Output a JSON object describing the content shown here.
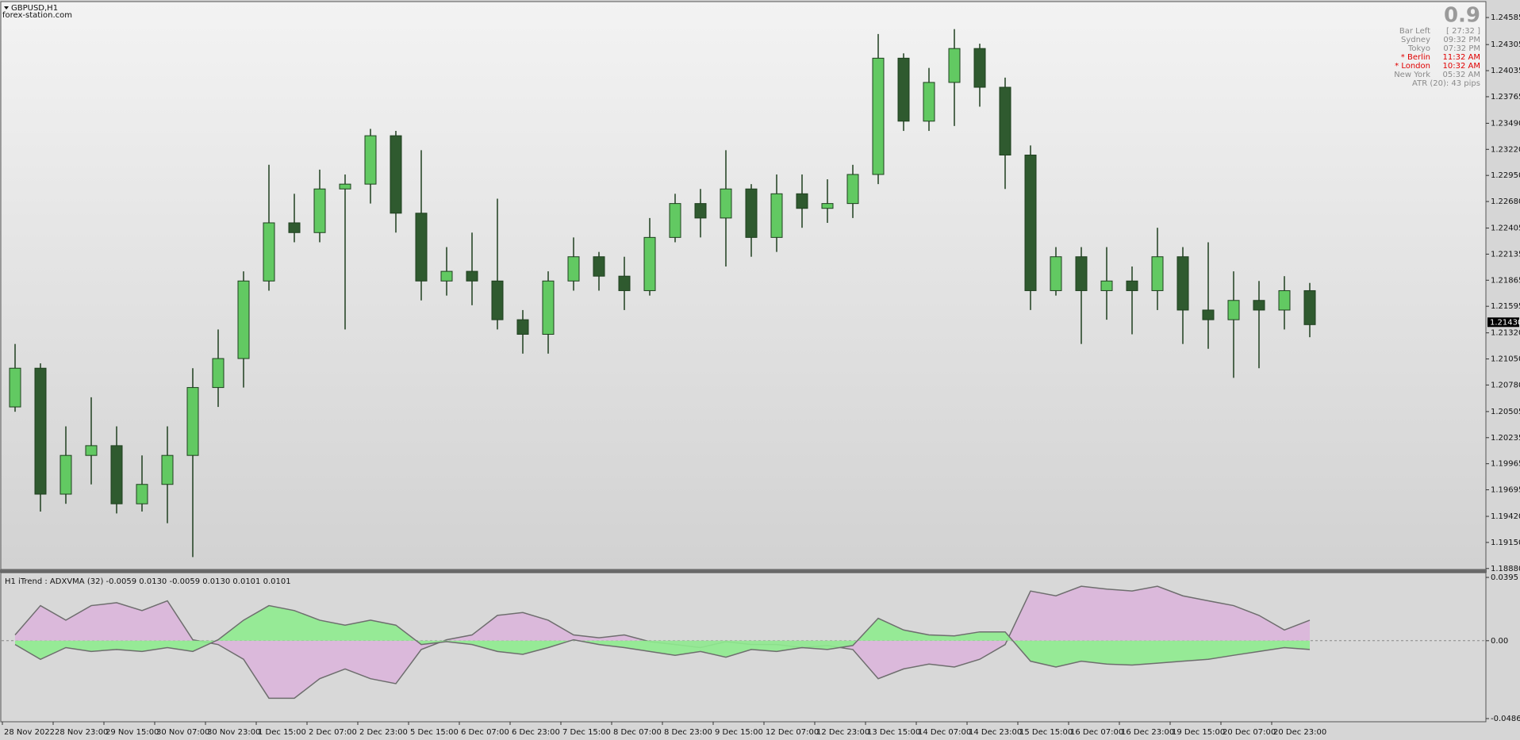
{
  "header": {
    "site": "forex-station.com"
  },
  "info_panel": {
    "spread": "0.9",
    "rows": [
      [
        "Bar Left",
        "[ 27:32 ]"
      ],
      [
        "Sydney",
        "09:32 PM"
      ],
      [
        "Tokyo",
        "07:32 PM"
      ],
      [
        "* Berlin",
        "11:32 AM"
      ],
      [
        "* London",
        "10:32 AM"
      ],
      [
        "New York",
        "05:32 AM"
      ]
    ],
    "atr": "ATR (20): 43 pips"
  },
  "chart_data": [
    {
      "type": "candlestick",
      "title": "GBPUSD,H1",
      "categories": [
        "28 Nov 2022",
        null,
        "28 Nov 23:00",
        null,
        "29 Nov 15:00",
        null,
        "30 Nov 07:00",
        null,
        "30 Nov 23:00",
        null,
        "1 Dec 15:00",
        null,
        "2 Dec 07:00",
        null,
        "2 Dec 23:00",
        null,
        "5 Dec 15:00",
        null,
        "6 Dec 07:00",
        null,
        "6 Dec 23:00",
        null,
        "7 Dec 15:00",
        null,
        "8 Dec 07:00",
        null,
        "8 Dec 23:00",
        null,
        "9 Dec 15:00",
        null,
        "12 Dec 07:00",
        null,
        "12 Dec 23:00",
        null,
        "13 Dec 15:00",
        null,
        "14 Dec 07:00",
        null,
        "14 Dec 23:00",
        null,
        "15 Dec 15:00",
        null,
        "16 Dec 07:00",
        null,
        "16 Dec 23:00",
        null,
        "19 Dec 15:00",
        null,
        "20 Dec 07:00",
        null,
        "20 Dec 23:00",
        null
      ],
      "open": [
        1.20553,
        1.20954,
        1.1965,
        1.20051,
        1.20152,
        1.1955,
        1.19751,
        1.20051,
        1.20754,
        1.21054,
        1.21857,
        1.22459,
        1.22358,
        1.2281,
        1.2286,
        1.23361,
        1.22559,
        1.21857,
        1.21957,
        1.21857,
        1.21456,
        1.21305,
        1.21857,
        1.22108,
        1.21907,
        1.21757,
        1.22308,
        1.22659,
        1.22509,
        1.2281,
        1.22308,
        1.2276,
        1.22609,
        1.22659,
        1.2296,
        1.24164,
        1.23512,
        1.23913,
        1.24264,
        1.23863,
        1.23161,
        1.21757,
        1.22108,
        1.21757,
        1.21857,
        1.21757,
        1.22108,
        1.21556,
        1.21456,
        1.21656,
        1.21556,
        1.21757
      ],
      "high": [
        1.21205,
        1.21004,
        1.20352,
        1.20653,
        1.20352,
        1.20051,
        1.20352,
        1.20954,
        1.21355,
        1.21957,
        1.2306,
        1.2276,
        1.2301,
        1.2296,
        1.23432,
        1.23411,
        1.23211,
        1.22208,
        1.22358,
        1.22709,
        1.21556,
        1.21957,
        1.22308,
        1.22158,
        1.22108,
        1.22509,
        1.2276,
        1.2281,
        1.23211,
        1.2286,
        1.2296,
        1.2296,
        1.2291,
        1.2306,
        1.24414,
        1.24214,
        1.24063,
        1.24465,
        1.24314,
        1.23963,
        1.23261,
        1.22208,
        1.22208,
        1.22208,
        1.22007,
        1.22408,
        1.22208,
        1.22258,
        1.21957,
        1.21857,
        1.21907,
        1.21837
      ],
      "low": [
        1.20503,
        1.1947,
        1.1955,
        1.19751,
        1.1945,
        1.1947,
        1.19349,
        1.18998,
        1.20553,
        1.20754,
        1.21757,
        1.22258,
        1.22258,
        1.21355,
        1.22659,
        1.22358,
        1.21656,
        1.21706,
        1.21606,
        1.21355,
        1.21105,
        1.21105,
        1.21757,
        1.21757,
        1.21556,
        1.21706,
        1.22258,
        1.22308,
        1.22007,
        1.22108,
        1.22158,
        1.22408,
        1.22459,
        1.22509,
        1.2286,
        1.23411,
        1.23411,
        1.23462,
        1.23662,
        1.2281,
        1.21556,
        1.21706,
        1.21205,
        1.21456,
        1.21305,
        1.21556,
        1.21205,
        1.21155,
        1.20854,
        1.20954,
        1.21355,
        1.21275
      ],
      "close": [
        1.20954,
        1.1965,
        1.20051,
        1.20152,
        1.1955,
        1.19751,
        1.20051,
        1.20754,
        1.21054,
        1.21857,
        1.22459,
        1.22358,
        1.2281,
        1.2286,
        1.23361,
        1.22559,
        1.21857,
        1.21957,
        1.21857,
        1.21456,
        1.21305,
        1.21857,
        1.22108,
        1.21907,
        1.21757,
        1.22308,
        1.22659,
        1.22509,
        1.2281,
        1.22308,
        1.2276,
        1.22609,
        1.22659,
        1.2296,
        1.24164,
        1.23512,
        1.23913,
        1.24264,
        1.23863,
        1.23161,
        1.21757,
        1.22108,
        1.21757,
        1.21857,
        1.21757,
        1.22108,
        1.21556,
        1.21456,
        1.21656,
        1.21556,
        1.21757,
        1.21405
      ],
      "up_color": "#62c962",
      "down_color": "#2f5a2f",
      "wick_color": "#1f3f1f",
      "last_price": {
        "value": 1.2143,
        "label": "1.21430"
      },
      "ylim": [
        1.1887,
        1.2475
      ],
      "yticks": [
        {
          "value": 1.24585,
          "label": "1.24585"
        },
        {
          "value": 1.24305,
          "label": "1.24305"
        },
        {
          "value": 1.24035,
          "label": "1.24035"
        },
        {
          "value": 1.23765,
          "label": "1.23765"
        },
        {
          "value": 1.2349,
          "label": "1.23490"
        },
        {
          "value": 1.2322,
          "label": "1.23220"
        },
        {
          "value": 1.2295,
          "label": "1.22950"
        },
        {
          "value": 1.2268,
          "label": "1.22680"
        },
        {
          "value": 1.22405,
          "label": "1.22405"
        },
        {
          "value": 1.22135,
          "label": "1.22135"
        },
        {
          "value": 1.21865,
          "label": "1.21865"
        },
        {
          "value": 1.21595,
          "label": "1.21595"
        },
        {
          "value": 1.2132,
          "label": "1.21320"
        },
        {
          "value": 1.2105,
          "label": "1.21050"
        },
        {
          "value": 1.2078,
          "label": "1.20780"
        },
        {
          "value": 1.20505,
          "label": "1.20505"
        },
        {
          "value": 1.20235,
          "label": "1.20235"
        },
        {
          "value": 1.19965,
          "label": "1.19965"
        },
        {
          "value": 1.19695,
          "label": "1.19695"
        },
        {
          "value": 1.1942,
          "label": "1.19420"
        },
        {
          "value": 1.1915,
          "label": "1.19150"
        },
        {
          "value": 1.1888,
          "label": "1.18880"
        }
      ]
    },
    {
      "type": "area",
      "title": "H1  iTrend : ADXVMA (32) -0.0059 0.0130 -0.0059 0.0130 0.0101 0.0101",
      "series": [
        {
          "color": "#dcb6dc",
          "values": [
            0.0036,
            0.0219,
            0.0128,
            0.0219,
            0.0237,
            0.0188,
            0.0249,
            0.0006,
            -0.0024,
            -0.0116,
            -0.0359,
            -0.0359,
            -0.0237,
            -0.0176,
            -0.0237,
            -0.0268,
            -0.0055,
            0.0006,
            0.0036,
            0.0158,
            0.0176,
            0.0128,
            0.0036,
            0.0018,
            0.0036,
            -0.0006,
            -0.0024,
            -0.0043,
            -0.0006,
            -0.0024,
            -0.0024,
            -0.0043,
            -0.003,
            -0.0055,
            -0.0237,
            -0.0176,
            -0.0146,
            -0.0164,
            -0.0116,
            -0.0024,
            0.031,
            0.028,
            0.034,
            0.0322,
            0.031,
            0.034,
            0.028,
            0.0249,
            0.0219,
            0.0158,
            0.0067,
            0.0128
          ]
        },
        {
          "color": "#8fec8f",
          "values": [
            -0.0024,
            -0.0116,
            -0.0043,
            -0.0067,
            -0.0055,
            -0.0067,
            -0.0043,
            -0.0067,
            0.0006,
            0.0128,
            0.0219,
            0.0188,
            0.0128,
            0.0097,
            0.0128,
            0.0097,
            -0.0024,
            -0.0006,
            -0.0024,
            -0.0067,
            -0.0085,
            -0.0043,
            0.0006,
            -0.0024,
            -0.0043,
            -0.0067,
            -0.0091,
            -0.0067,
            -0.0103,
            -0.0055,
            -0.0067,
            -0.0043,
            -0.0055,
            -0.003,
            0.014,
            0.0067,
            0.0036,
            0.003,
            0.0055,
            0.0055,
            -0.0128,
            -0.0164,
            -0.0128,
            -0.0146,
            -0.0152,
            -0.014,
            -0.0128,
            -0.0116,
            -0.0091,
            -0.0067,
            -0.0043,
            -0.0055
          ]
        }
      ],
      "ylim": [
        -0.0486,
        0.0395
      ],
      "yticks": [
        0.0395,
        {
          "value": 0,
          "label": "0.00"
        },
        -0.0486
      ]
    }
  ]
}
